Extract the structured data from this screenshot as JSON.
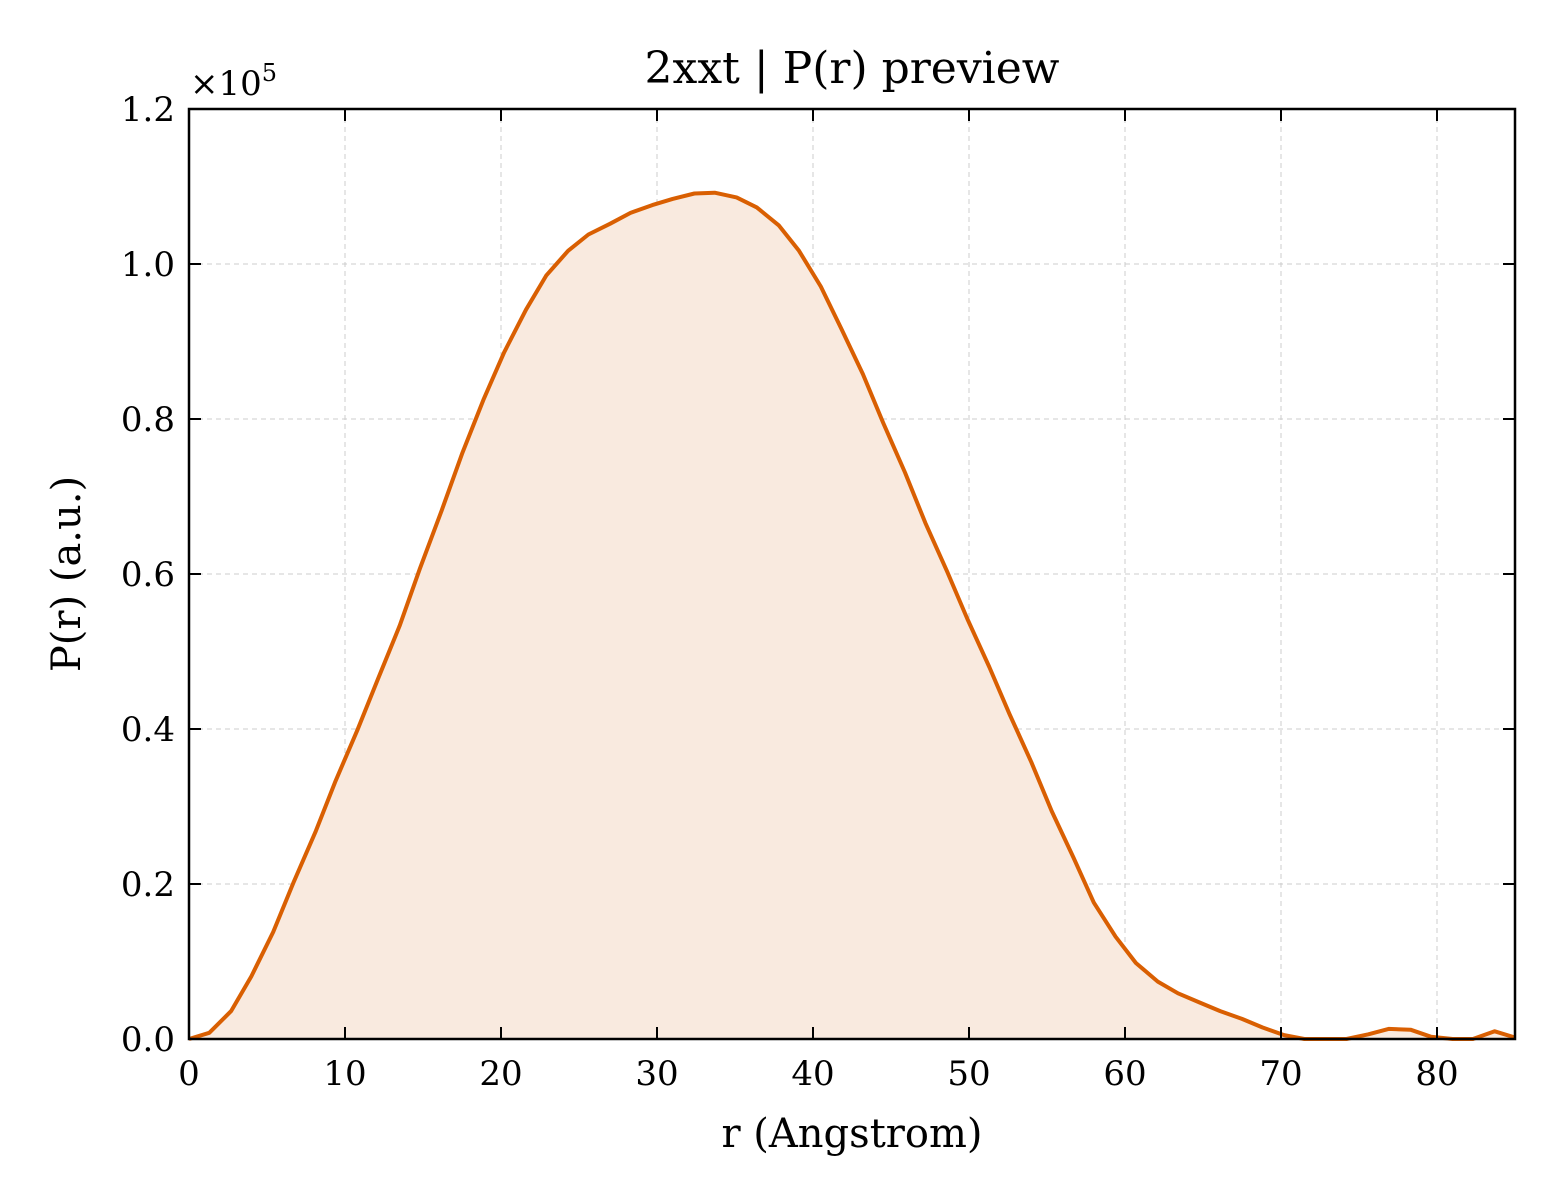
{
  "chart_data": {
    "type": "area",
    "title": "2xxt | P(r) preview",
    "xlabel": "r (Angstrom)",
    "ylabel": "P(r) (a.u.)",
    "y_multiplier_base": "×10",
    "y_multiplier_exp": "5",
    "xlim": [
      0,
      85
    ],
    "ylim": [
      0,
      120000
    ],
    "x_ticks": [
      0,
      10,
      20,
      30,
      40,
      50,
      60,
      70,
      80
    ],
    "x_tick_labels": [
      "0",
      "10",
      "20",
      "30",
      "40",
      "50",
      "60",
      "70",
      "80"
    ],
    "y_ticks": [
      0,
      20000,
      40000,
      60000,
      80000,
      100000,
      120000
    ],
    "y_tick_labels": [
      "0.0",
      "0.2",
      "0.4",
      "0.6",
      "0.8",
      "1.0",
      "1.2"
    ],
    "grid": true,
    "line_color": "#d95f02",
    "fill_color": "#f9eadf",
    "series": [
      {
        "x": [
          0,
          1.3,
          2.7,
          4.0,
          5.4,
          6.7,
          8.1,
          9.4,
          10.8,
          12.1,
          13.5,
          14.8,
          16.2,
          17.5,
          18.9,
          20.2,
          21.6,
          22.9,
          24.3,
          25.6,
          27.0,
          28.3,
          29.7,
          31.0,
          32.4,
          33.7,
          35.1,
          36.4,
          37.8,
          39.1,
          40.5,
          41.8,
          43.2,
          44.5,
          45.9,
          47.2,
          48.6,
          49.9,
          51.3,
          52.6,
          54.0,
          55.3,
          56.7,
          58.0,
          59.4,
          60.7,
          62.1,
          63.4,
          64.8,
          66.1,
          67.5,
          68.8,
          70.2,
          71.5,
          72.9,
          74.2,
          75.6,
          76.9,
          78.3,
          79.6,
          81.0,
          82.3,
          83.7,
          85.0
        ],
        "y": [
          0,
          800,
          3600,
          8100,
          13800,
          20200,
          26700,
          33300,
          39900,
          46400,
          53300,
          60700,
          68200,
          75500,
          82600,
          88600,
          94100,
          98500,
          101700,
          103800,
          105200,
          106600,
          107600,
          108400,
          109100,
          109200,
          108600,
          107300,
          105000,
          101700,
          97100,
          91700,
          85800,
          79500,
          73100,
          66600,
          60300,
          54200,
          48000,
          41900,
          35700,
          29400,
          23400,
          17600,
          13200,
          9800,
          7400,
          5900,
          4700,
          3600,
          2600,
          1500,
          500,
          0,
          0,
          0,
          600,
          1300,
          1200,
          300,
          0,
          0,
          1000,
          200
        ]
      }
    ]
  }
}
